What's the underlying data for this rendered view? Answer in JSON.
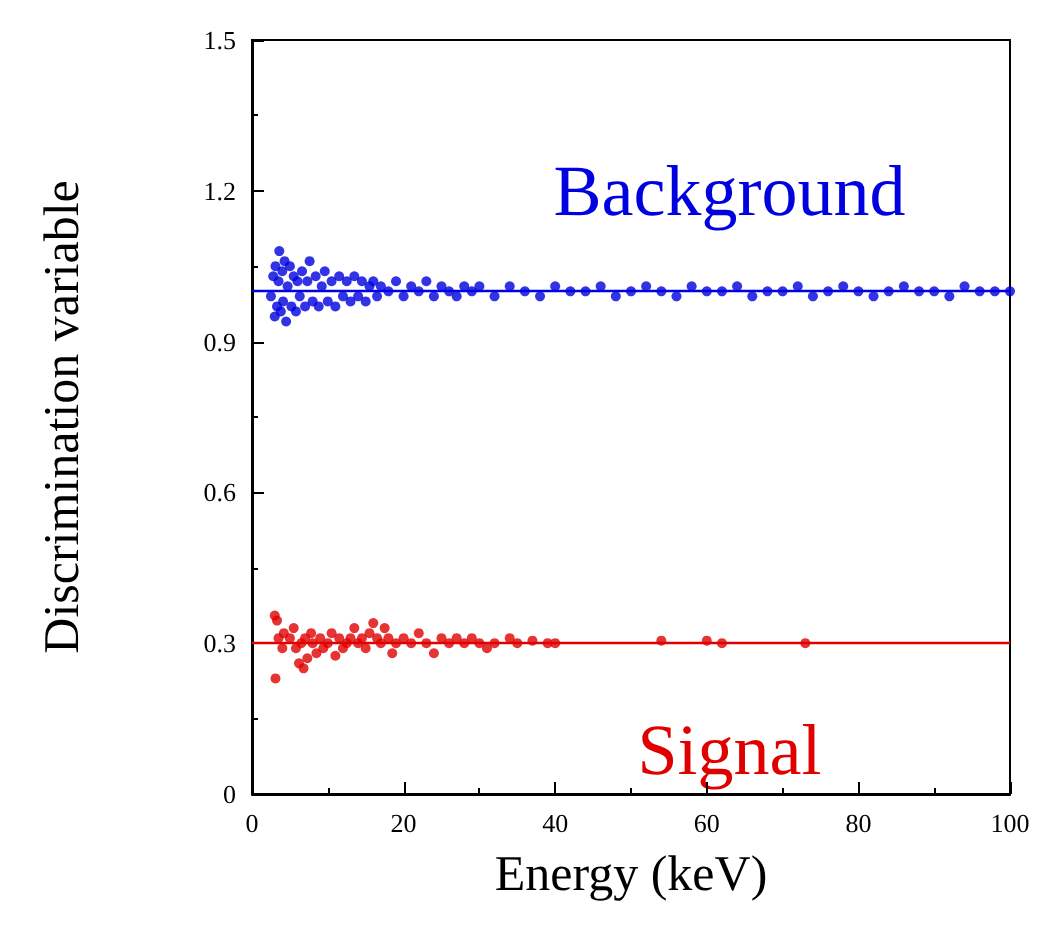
{
  "chart_data": {
    "type": "scatter",
    "xlabel": "Energy (keV)",
    "ylabel": "Discrimination variable",
    "xlim": [
      0,
      100
    ],
    "xticks": [
      0,
      20,
      40,
      60,
      80,
      100
    ],
    "ylim": [
      0,
      1.5
    ],
    "yticks": [
      0,
      0.3,
      0.6,
      0.9,
      1.2,
      1.5
    ],
    "grid": false,
    "legend": false,
    "marker": "circle",
    "series": [
      {
        "name": "Background",
        "color": "#0000e0",
        "x": [
          2.5,
          2.8,
          3,
          3.1,
          3.3,
          3.5,
          3.6,
          3.8,
          4,
          4.1,
          4.3,
          4.5,
          4.7,
          5,
          5.2,
          5.5,
          5.8,
          6,
          6.3,
          6.6,
          7,
          7.3,
          7.6,
          8,
          8.4,
          8.8,
          9.2,
          9.6,
          10,
          10.5,
          11,
          11.5,
          12,
          12.5,
          13,
          13.5,
          14,
          14.5,
          15,
          15.5,
          16,
          16.5,
          17,
          18,
          19,
          20,
          21,
          22,
          23,
          24,
          25,
          26,
          27,
          28,
          29,
          30,
          32,
          34,
          36,
          38,
          40,
          42,
          44,
          46,
          48,
          50,
          52,
          54,
          56,
          58,
          60,
          62,
          64,
          66,
          68,
          70,
          72,
          74,
          76,
          78,
          80,
          82,
          84,
          86,
          88,
          90,
          92,
          94,
          96,
          98,
          100
        ],
        "values": [
          0.99,
          1.03,
          0.95,
          1.05,
          0.97,
          1.02,
          1.08,
          0.96,
          1.04,
          0.98,
          1.06,
          0.94,
          1.01,
          1.05,
          0.97,
          1.03,
          0.96,
          1.02,
          0.99,
          1.04,
          0.97,
          1.02,
          1.06,
          0.98,
          1.03,
          0.97,
          1.01,
          1.04,
          0.98,
          1.02,
          0.97,
          1.03,
          0.99,
          1.02,
          0.98,
          1.03,
          0.99,
          1.02,
          0.98,
          1.01,
          1.02,
          0.99,
          1.01,
          1.0,
          1.02,
          0.99,
          1.01,
          1.0,
          1.02,
          0.99,
          1.01,
          1.0,
          0.99,
          1.01,
          1.0,
          1.01,
          0.99,
          1.01,
          1.0,
          0.99,
          1.01,
          1.0,
          1.0,
          1.01,
          0.99,
          1.0,
          1.01,
          1.0,
          0.99,
          1.01,
          1.0,
          1.0,
          1.01,
          0.99,
          1.0,
          1.0,
          1.01,
          0.99,
          1.0,
          1.01,
          1.0,
          0.99,
          1.0,
          1.01,
          1.0,
          1.0,
          0.99,
          1.01,
          1.0,
          1.0,
          1.0
        ]
      },
      {
        "name": "Signal",
        "color": "#e00000",
        "x": [
          3,
          3.3,
          3.1,
          3.5,
          4,
          4.2,
          6.8,
          5,
          5.5,
          5.8,
          6.2,
          6.5,
          7,
          7.3,
          7.8,
          8,
          8.5,
          9,
          9.4,
          10,
          10.5,
          11,
          11.5,
          12,
          12.5,
          13,
          13.5,
          14,
          14.5,
          15,
          15.5,
          16,
          16.5,
          17,
          17.5,
          18,
          18.5,
          19,
          20,
          21,
          22,
          23,
          24,
          25,
          26,
          27,
          28,
          29,
          30,
          31,
          32,
          34,
          35,
          37,
          39,
          40,
          54,
          60,
          62,
          73
        ],
        "values": [
          0.355,
          0.345,
          0.23,
          0.31,
          0.29,
          0.32,
          0.25,
          0.31,
          0.33,
          0.29,
          0.26,
          0.3,
          0.31,
          0.27,
          0.32,
          0.3,
          0.28,
          0.31,
          0.29,
          0.3,
          0.32,
          0.275,
          0.31,
          0.29,
          0.3,
          0.31,
          0.33,
          0.3,
          0.31,
          0.29,
          0.32,
          0.34,
          0.31,
          0.3,
          0.33,
          0.31,
          0.28,
          0.3,
          0.31,
          0.3,
          0.32,
          0.3,
          0.28,
          0.31,
          0.3,
          0.31,
          0.3,
          0.31,
          0.3,
          0.29,
          0.3,
          0.31,
          0.3,
          0.305,
          0.3,
          0.3,
          0.305,
          0.305,
          0.3,
          0.3
        ]
      }
    ],
    "ref_lines": [
      {
        "axis": "y",
        "value": 1.0,
        "color": "#0000e0"
      },
      {
        "axis": "y",
        "value": 0.3,
        "color": "#e00000"
      }
    ]
  }
}
